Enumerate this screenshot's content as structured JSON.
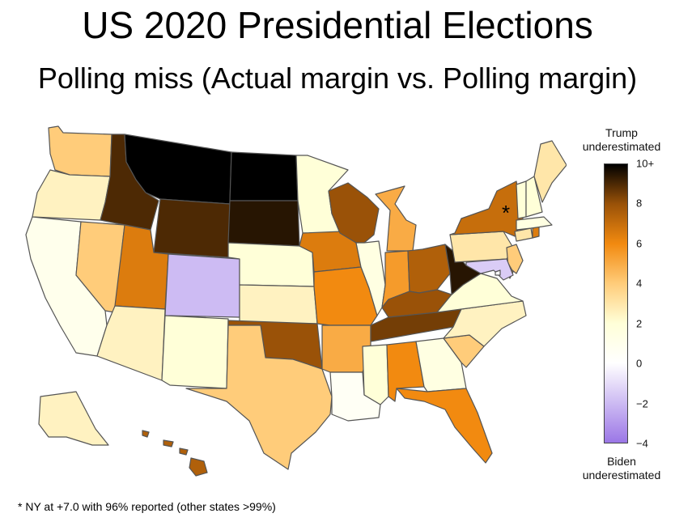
{
  "title": "US 2020 Presidential Elections",
  "subtitle": "Polling miss (Actual margin vs. Polling margin)",
  "legend": {
    "top_label": "Trump underestimated",
    "bottom_label": "Biden underestimated",
    "ticks": [
      "10+",
      "8",
      "6",
      "4",
      "2",
      "0",
      "−2",
      "−4"
    ],
    "tick_values": [
      10,
      8,
      6,
      4,
      2,
      0,
      -2,
      -4
    ],
    "range": [
      -4,
      10
    ],
    "colors": {
      "-4": "#9b77e6",
      "0": "#ffffff",
      "2": "#ffffd8",
      "4": "#ffcc7a",
      "6": "#f28a10",
      "8": "#9a5208",
      "10": "#000000"
    }
  },
  "annotation": "*",
  "footnote": "* NY at +7.0 with 96% reported (other states >99%)",
  "map_data": {
    "type": "choropleth",
    "metric": "polling miss",
    "states": {
      "WA": 4,
      "OR": 2.5,
      "CA": 1,
      "NV": 4,
      "ID": 9,
      "MT": 10,
      "WY": 9,
      "UT": 6.5,
      "AZ": 2.5,
      "CO": -2,
      "NM": 2,
      "ND": 10,
      "SD": 9.5,
      "NE": 2,
      "KS": 2.5,
      "OK": 8,
      "TX": 4,
      "MN": 2,
      "IA": 6.5,
      "MO": 6,
      "AR": 5,
      "LA": 0.5,
      "WI": 8,
      "IL": 1.5,
      "MI": 5,
      "IN": 5.5,
      "OH": 7.5,
      "KY": 8,
      "TN": 8.5,
      "MS": 2,
      "AL": 6,
      "GA": 1.5,
      "FL": 6,
      "SC": 4,
      "NC": 2.5,
      "VA": 2,
      "WV": 9.5,
      "PA": 3,
      "NY": 7,
      "VT": 2,
      "NH": 2,
      "ME": 3,
      "MA": 1.5,
      "RI": 6.5,
      "CT": 3,
      "NJ": 4,
      "DE": 6,
      "MD": -1.5,
      "DC": 0,
      "AK": 2.5,
      "HI": 7.5
    }
  }
}
